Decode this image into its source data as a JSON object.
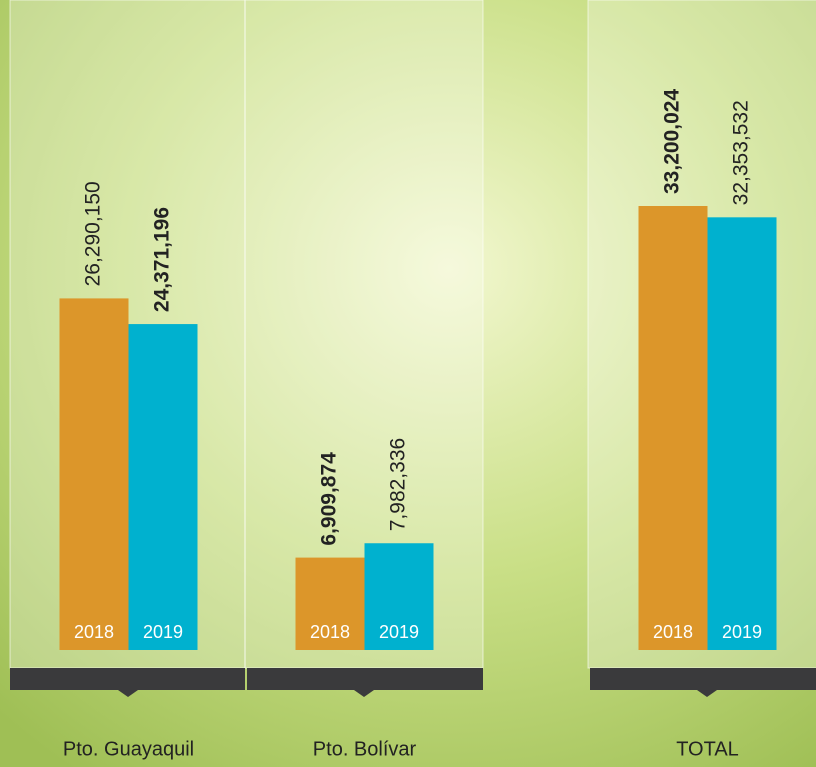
{
  "chart_data": {
    "type": "bar",
    "categories": [
      "Pto. Guayaquil",
      "Pto. Bolívar",
      "TOTAL"
    ],
    "series": [
      {
        "name": "2018",
        "color": "#dc962a",
        "values": [
          26290150,
          6909874,
          33200024
        ],
        "value_labels": [
          "26,290,150",
          "6,909,874",
          "33,200,024"
        ]
      },
      {
        "name": "2019",
        "color": "#00b1cf",
        "values": [
          24371196,
          7982336,
          32353532
        ],
        "value_labels": [
          "24,371,196",
          "7,982,336",
          "32,353,532"
        ]
      }
    ]
  }
}
